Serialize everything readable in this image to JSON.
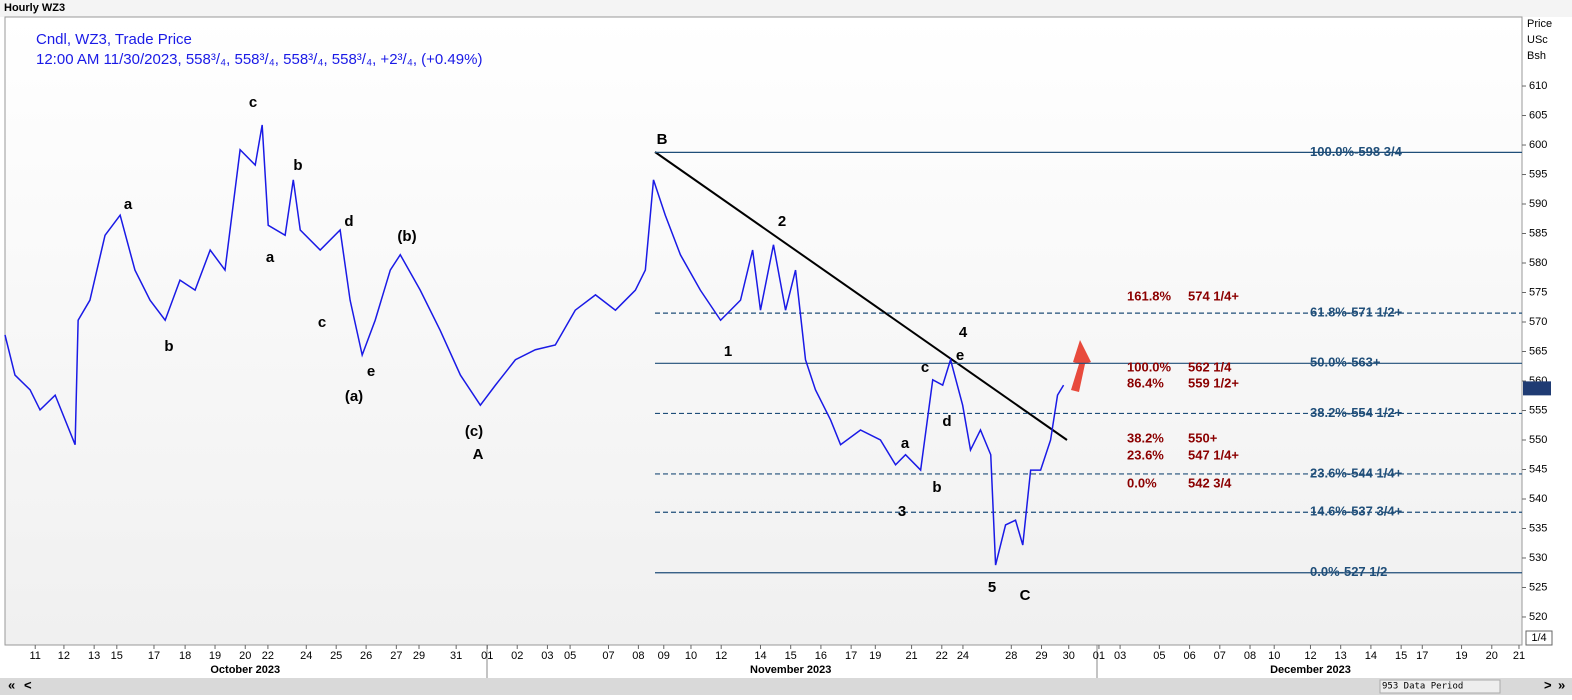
{
  "header": {
    "title": "Hourly WZ3"
  },
  "chart_data": {
    "type": "line",
    "legend_lines": [
      "Cndl, WZ3, Trade Price",
      "12:00 AM 11/30/2023, 558³/₄, 558³/₄, 558³/₄, 558³/₄, +2³/₄, (+0.49%)"
    ],
    "y_axis_label": [
      "Price",
      "USc",
      "Bsh"
    ],
    "xlim": [
      0,
      50.2
    ],
    "ylim": [
      515.25,
      621.7
    ],
    "yticks": [
      520,
      525,
      530,
      535,
      540,
      545,
      550,
      555,
      560,
      565,
      570,
      575,
      580,
      585,
      590,
      595,
      600,
      605,
      610
    ],
    "xticks": [
      {
        "value": 1.0,
        "label": "11"
      },
      {
        "value": 1.95,
        "label": "12"
      },
      {
        "value": 2.95,
        "label": "13"
      },
      {
        "value": 3.7,
        "label": "15"
      },
      {
        "value": 4.93,
        "label": "17"
      },
      {
        "value": 5.96,
        "label": "18"
      },
      {
        "value": 6.95,
        "label": "19"
      },
      {
        "value": 7.95,
        "label": "20"
      },
      {
        "value": 8.7,
        "label": "22"
      },
      {
        "value": 9.97,
        "label": "24"
      },
      {
        "value": 10.96,
        "label": "25"
      },
      {
        "value": 11.95,
        "label": "26"
      },
      {
        "value": 12.95,
        "label": "27"
      },
      {
        "value": 13.7,
        "label": "29"
      },
      {
        "value": 14.93,
        "label": "31"
      },
      {
        "value": 15.96,
        "label": "01"
      },
      {
        "value": 16.95,
        "label": "02"
      },
      {
        "value": 17.95,
        "label": "03"
      },
      {
        "value": 18.7,
        "label": "05"
      },
      {
        "value": 19.97,
        "label": "07"
      },
      {
        "value": 20.96,
        "label": "08"
      },
      {
        "value": 21.8,
        "label": "09"
      },
      {
        "value": 22.7,
        "label": "10"
      },
      {
        "value": 23.7,
        "label": "12"
      },
      {
        "value": 25.0,
        "label": "14"
      },
      {
        "value": 26.0,
        "label": "15"
      },
      {
        "value": 27.0,
        "label": "16"
      },
      {
        "value": 28.0,
        "label": "17"
      },
      {
        "value": 28.8,
        "label": "19"
      },
      {
        "value": 30.0,
        "label": "21"
      },
      {
        "value": 31.0,
        "label": "22"
      },
      {
        "value": 31.7,
        "label": "24"
      },
      {
        "value": 33.3,
        "label": "28"
      },
      {
        "value": 34.3,
        "label": "29"
      },
      {
        "value": 35.2,
        "label": "30"
      },
      {
        "value": 36.2,
        "label": "01"
      },
      {
        "value": 36.9,
        "label": "03"
      },
      {
        "value": 38.2,
        "label": "05"
      },
      {
        "value": 39.2,
        "label": "06"
      },
      {
        "value": 40.2,
        "label": "07"
      },
      {
        "value": 41.2,
        "label": "08"
      },
      {
        "value": 42.0,
        "label": "10"
      },
      {
        "value": 43.2,
        "label": "12"
      },
      {
        "value": 44.2,
        "label": "13"
      },
      {
        "value": 45.2,
        "label": "14"
      },
      {
        "value": 46.2,
        "label": "15"
      },
      {
        "value": 46.9,
        "label": "17"
      },
      {
        "value": 48.2,
        "label": "19"
      },
      {
        "value": 49.2,
        "label": "20"
      },
      {
        "value": 50.1,
        "label": "21"
      }
    ],
    "month_labels": [
      {
        "value": 7.95,
        "label": "October 2023"
      },
      {
        "value": 26.0,
        "label": "November 2023"
      },
      {
        "value": 43.2,
        "label": "December 2023"
      }
    ],
    "series": [
      {
        "name": "WZ3",
        "color": "#1a1ae6",
        "x": [
          0,
          0.33,
          0.83,
          1.16,
          1.66,
          2.32,
          2.42,
          2.81,
          3.31,
          3.81,
          4.3,
          4.8,
          5.3,
          5.79,
          6.29,
          6.79,
          7.28,
          7.78,
          8.28,
          8.51,
          8.71,
          9.27,
          9.54,
          9.77,
          10.43,
          11.09,
          11.42,
          11.82,
          12.25,
          12.75,
          13.08,
          13.74,
          14.4,
          15.07,
          15.73,
          16.23,
          16.89,
          17.55,
          18.21,
          18.87,
          19.54,
          20.2,
          20.86,
          21.19,
          21.46,
          21.85,
          22.35,
          23.01,
          23.68,
          24.34,
          24.74,
          25.0,
          25.43,
          25.83,
          26.16,
          26.49,
          26.82,
          27.32,
          27.65,
          28.31,
          28.97,
          29.47,
          29.8,
          30.3,
          30.7,
          31.03,
          31.29,
          31.69,
          31.95,
          32.28,
          32.62,
          32.78,
          33.11,
          33.44,
          33.68,
          33.94,
          34.27,
          34.6,
          34.83,
          35.03
        ],
        "values": [
          567.8,
          561,
          558.5,
          555.1,
          557.6,
          549.2,
          570.3,
          573.7,
          584.7,
          588.1,
          578.8,
          573.7,
          570.3,
          577.1,
          575.4,
          582.2,
          578.8,
          599.2,
          596.6,
          603.4,
          586.4,
          584.7,
          594.1,
          585.6,
          582.2,
          585.6,
          573.7,
          564.4,
          570.3,
          578.8,
          581.4,
          575.4,
          568.6,
          561,
          555.9,
          559.3,
          563.6,
          565.3,
          566.1,
          572,
          574.6,
          572,
          575.4,
          578.8,
          594.1,
          588.1,
          581.4,
          575.4,
          570.3,
          573.7,
          582.2,
          572,
          583.1,
          572,
          578.8,
          563.6,
          558.5,
          553.4,
          549.2,
          551.7,
          550,
          545.8,
          547.5,
          544.9,
          560.2,
          559.3,
          563.6,
          555.9,
          548.3,
          551.7,
          547.5,
          528.8,
          535.6,
          536.4,
          532.2,
          544.9,
          544.9,
          550,
          557.6,
          559.3
        ]
      }
    ],
    "last_price": 558.75,
    "levels": [
      {
        "label": "100.0%-598 3/4",
        "value": 598.75,
        "style": "solid"
      },
      {
        "label": "61.8%-571 1/2+",
        "value": 571.5,
        "style": "dashed"
      },
      {
        "label": "50.0%-563+",
        "value": 563,
        "style": "solid"
      },
      {
        "label": "38.2%-554 1/2+",
        "value": 554.5,
        "style": "dashed"
      },
      {
        "label": "23.6%-544 1/4+",
        "value": 544.25,
        "style": "dashed"
      },
      {
        "label": "14.6%-537 3/4+",
        "value": 537.75,
        "style": "dashed"
      },
      {
        "label": "0.0%-527 1/2",
        "value": 527.5,
        "style": "solid"
      }
    ],
    "projection_labels": [
      [
        "161.8%",
        "574 1/4+"
      ],
      [
        "100.0%",
        "562 1/4"
      ],
      [
        "86.4%",
        "559 1/2+"
      ],
      [
        "38.2%",
        "550+"
      ],
      [
        "23.6%",
        "547 1/4+"
      ],
      [
        "0.0%",
        "542 3/4"
      ]
    ],
    "wave_labels": [
      "c",
      "a",
      "b",
      "a",
      "b",
      "d",
      "(b)",
      "c",
      "(a)",
      "e",
      "(c)",
      "A",
      "B",
      "2",
      "1",
      "4",
      "c",
      "e",
      "d",
      "a",
      "b",
      "3",
      "5",
      "C"
    ],
    "scale_box": "1/4"
  },
  "footer": {
    "data_period": "953 Data Period",
    "buttons": [
      "«",
      "<",
      ">",
      "»"
    ]
  }
}
